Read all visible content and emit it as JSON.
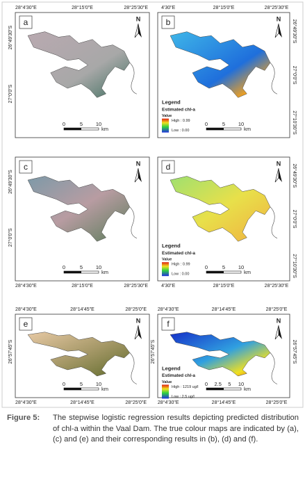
{
  "figure": {
    "panels": [
      {
        "letter": "a",
        "north": "N",
        "top": [
          "28°4'30\"E",
          "28°15'0\"E",
          "28°25'30\"E"
        ],
        "left": [
          "26°49'30\"S",
          "27°0'0\"S"
        ],
        "scale": [
          "0",
          "5",
          "10",
          "km"
        ]
      },
      {
        "letter": "b",
        "north": "N",
        "top": [
          "4'30\"E",
          "28°15'0\"E",
          "28°25'30\"E"
        ],
        "right": [
          "26°49'30\"S",
          "27°0'0\"S",
          "27°10'30\"S"
        ],
        "scale": [
          "0",
          "5",
          "10",
          "km"
        ],
        "legend": {
          "title": "Legend",
          "subtitle": "Estimated chl-a",
          "value": "Value",
          "high": "High : 0.99",
          "low": "Low : 0.00"
        }
      },
      {
        "letter": "c",
        "north": "N",
        "left": [
          "26°49'30\"S",
          "27°0'0\"S"
        ],
        "bottom": [
          "28°4'30\"E",
          "28°15'0\"E",
          "28°25'30\"E"
        ],
        "scale": [
          "0",
          "5",
          "10",
          "km"
        ]
      },
      {
        "letter": "d",
        "north": "N",
        "right": [
          "26°49'30\"S",
          "27°0'0\"S",
          "27°10'30\"S"
        ],
        "bottom": [
          "4'30\"E",
          "28°15'0\"E",
          "28°25'30\"E"
        ],
        "scale": [
          "0",
          "5",
          "10",
          "km"
        ],
        "legend": {
          "title": "Legend",
          "subtitle": "Estimated chl-a",
          "value": "Value",
          "high": "High : 0.99",
          "low": "Low : 0.00"
        }
      },
      {
        "letter": "e",
        "north": "N",
        "top": [
          "28°4'30\"E",
          "28°14'45\"E",
          "28°25'0\"E"
        ],
        "left": [
          "26°57'45\"S"
        ],
        "bottom": [
          "28°4'30\"E",
          "28°14'45\"E",
          "28°25'0\"E"
        ],
        "scale": [
          "0",
          "5",
          "10",
          "km"
        ]
      },
      {
        "letter": "f",
        "north": "N",
        "top": [
          "28°4'30\"E",
          "28°14'45\"E",
          "28°25'0\"E"
        ],
        "left": [
          "26°57'45\"S"
        ],
        "right": [
          "26°57'45\"S"
        ],
        "bottom": [
          "28°4'30\"E",
          "28°14'45\"E",
          "28°25'0\"E"
        ],
        "scale": [
          "0",
          "2.5",
          "5",
          "10",
          "km"
        ],
        "legend": {
          "title": "Legend",
          "subtitle": "Estimated chl-a",
          "value": "Value",
          "high": "High : 1219 ug/l",
          "low": "Low : 2.5 ug/l"
        }
      }
    ],
    "caption": {
      "label": "Figure 5:",
      "text": "The stepwise logistic regression results depicting predicted distribution of chl-a within the Vaal Dam. The true colour maps are indicated by (a), (c) and (e) and their corresponding results in (b), (d) and (f)."
    }
  }
}
